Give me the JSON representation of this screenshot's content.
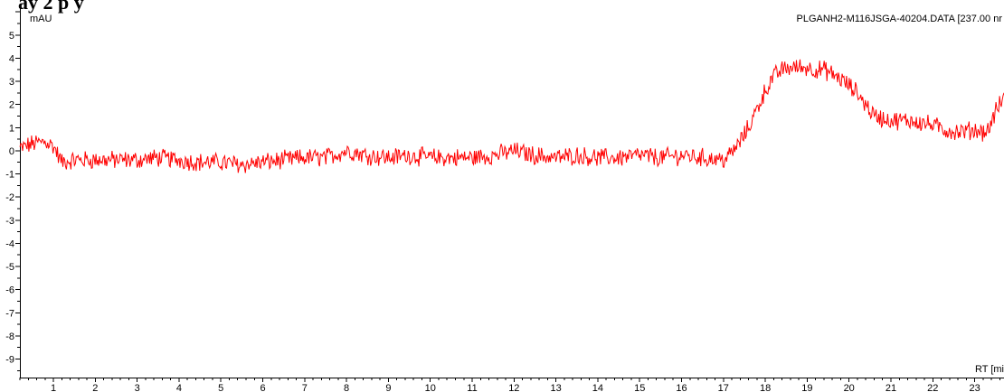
{
  "chart_data": {
    "type": "line",
    "clipped_title_fragment": "ay          2 p y",
    "ylabel": "mAU",
    "xlabel": "RT [mi",
    "legend": "PLGANH2-M116JSGA-40204.DATA [237.00 nr",
    "legend_position": "top-right",
    "xlim": [
      0.2,
      23.7
    ],
    "ylim": [
      -9.8,
      6.2
    ],
    "x_ticks": [
      "1",
      "2",
      "3",
      "4",
      "5",
      "6",
      "7",
      "8",
      "9",
      "10",
      "11",
      "12",
      "13",
      "14",
      "15",
      "16",
      "17",
      "18",
      "19",
      "20",
      "21",
      "22",
      "23"
    ],
    "y_ticks": [
      "5",
      "4",
      "3",
      "2",
      "1",
      "0",
      "-1",
      "-2",
      "-3",
      "-4",
      "-5",
      "-6",
      "-7",
      "-8",
      "-9"
    ],
    "grid": false,
    "series": [
      {
        "name": "PLGANH2-M116JSGA-40204.DATA [237.00 nr",
        "color": "#ff0000",
        "x": [
          0.2,
          0.5,
          0.8,
          1.0,
          1.2,
          1.5,
          2,
          2.5,
          3,
          3.5,
          4,
          4.5,
          5,
          5.5,
          6,
          6.5,
          7,
          7.5,
          8,
          8.5,
          9,
          9.5,
          10,
          10.5,
          11,
          11.5,
          12,
          12.5,
          13,
          13.5,
          14,
          14.5,
          15,
          15.5,
          16,
          16.5,
          17,
          17.2,
          17.4,
          17.6,
          17.8,
          18.0,
          18.2,
          18.4,
          18.6,
          18.8,
          19.0,
          19.2,
          19.4,
          19.6,
          19.8,
          20.0,
          20.2,
          20.4,
          20.6,
          20.8,
          21.0,
          21.5,
          22.0,
          22.3,
          22.6,
          23.0,
          23.3,
          23.5,
          23.7
        ],
        "y": [
          0.1,
          0.3,
          0.4,
          0.2,
          -0.5,
          -0.4,
          -0.4,
          -0.4,
          -0.4,
          -0.3,
          -0.4,
          -0.5,
          -0.5,
          -0.6,
          -0.5,
          -0.4,
          -0.3,
          -0.3,
          0.0,
          -0.2,
          -0.3,
          -0.2,
          -0.3,
          -0.3,
          -0.3,
          -0.2,
          0.0,
          -0.2,
          -0.3,
          -0.2,
          -0.3,
          -0.3,
          -0.2,
          -0.3,
          -0.2,
          -0.3,
          -0.4,
          -0.1,
          0.4,
          1.0,
          1.8,
          2.6,
          3.2,
          3.5,
          3.6,
          3.6,
          3.6,
          3.5,
          3.5,
          3.3,
          3.1,
          2.8,
          2.5,
          2.0,
          1.5,
          1.4,
          1.3,
          1.3,
          1.1,
          0.9,
          0.8,
          0.9,
          0.8,
          1.7,
          2.3
        ],
        "noise_amplitude": 0.35
      }
    ]
  }
}
